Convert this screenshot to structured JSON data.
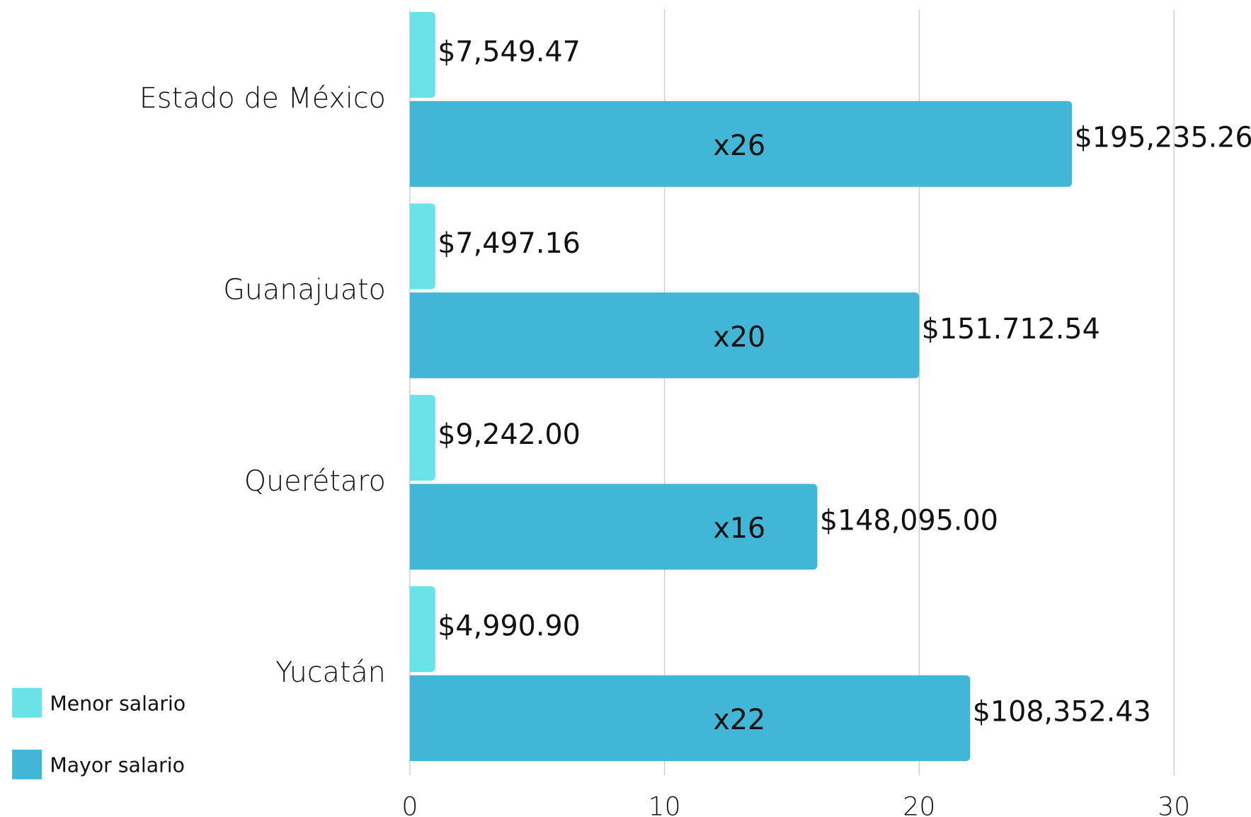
{
  "chart_data": {
    "type": "hbar",
    "categories": [
      "Estado de México",
      "Guanajuato",
      "Querétaro",
      "Yucatán"
    ],
    "series": [
      {
        "name": "Menor salario",
        "color": "#6ae3e8",
        "values": [
          1,
          1,
          1,
          1
        ],
        "amount_labels": [
          "$7,549.47",
          "$7,497.16",
          "$9,242.00",
          "$4,990.90"
        ]
      },
      {
        "name": "Mayor salario",
        "color": "#41b6d6",
        "values": [
          26,
          20,
          16,
          22
        ],
        "value_labels": [
          "x26",
          "x20",
          "x16",
          "x22"
        ],
        "amount_labels": [
          "$195,235.26",
          "$151.712.54",
          "$148,095.00",
          "$108,352.43"
        ]
      }
    ],
    "xlim": [
      0,
      30
    ],
    "xticks": [
      0,
      10,
      20,
      30
    ],
    "grid": true,
    "legend": "lower left"
  }
}
